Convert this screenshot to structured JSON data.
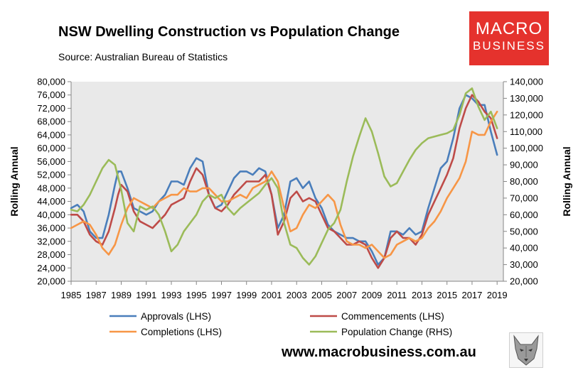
{
  "header": {
    "title": "NSW Dwelling Construction vs Population Change",
    "source": "Source: Australian Bureau of Statistics"
  },
  "logo": {
    "line1": "MACRO",
    "line2": "BUSINESS",
    "color": "#e5322d"
  },
  "footer": {
    "url": "www.macrobusiness.com.au",
    "wolf_icon": "wolf-icon"
  },
  "chart_data": {
    "type": "line",
    "ylabel_left": "Rolling Annual",
    "ylabel_right": "Rolling Annual",
    "ylim_left": [
      20000,
      80000
    ],
    "ylim_right": [
      20000,
      140000
    ],
    "yticks_left": [
      "20,000",
      "24,000",
      "28,000",
      "32,000",
      "36,000",
      "40,000",
      "44,000",
      "48,000",
      "52,000",
      "56,000",
      "60,000",
      "64,000",
      "68,000",
      "72,000",
      "76,000",
      "80,000"
    ],
    "yticks_right": [
      "20,000",
      "30,000",
      "40,000",
      "50,000",
      "60,000",
      "70,000",
      "80,000",
      "90,000",
      "100,000",
      "110,000",
      "120,000",
      "130,000",
      "140,000"
    ],
    "xlim": [
      1985,
      2019.5
    ],
    "xticks": [
      "1985",
      "1987",
      "1989",
      "1991",
      "1993",
      "1995",
      "1997",
      "1999",
      "2001",
      "2003",
      "2005",
      "2007",
      "2009",
      "2011",
      "2013",
      "2015",
      "2017",
      "2019"
    ],
    "plot_background": "#e9e9e9",
    "grid": false,
    "legend_position": "bottom",
    "series": [
      {
        "name": "Approvals (LHS)",
        "axis": "left",
        "color": "#4a7ebb",
        "x": [
          1985,
          1985.5,
          1986,
          1986.5,
          1987,
          1987.5,
          1988,
          1988.5,
          1988.75,
          1989,
          1989.5,
          1990,
          1990.5,
          1991,
          1991.5,
          1992,
          1992.5,
          1993,
          1993.5,
          1994,
          1994.5,
          1995,
          1995.5,
          1996,
          1996.5,
          1997,
          1997.5,
          1998,
          1998.5,
          1999,
          1999.5,
          2000,
          2000.5,
          2001,
          2001.5,
          2002,
          2002.5,
          2003,
          2003.5,
          2004,
          2004.5,
          2005,
          2005.5,
          2006,
          2006.5,
          2007,
          2007.5,
          2008,
          2008.5,
          2009,
          2009.5,
          2010,
          2010.5,
          2011,
          2011.5,
          2012,
          2012.5,
          2013,
          2013.5,
          2014,
          2014.5,
          2015,
          2015.5,
          2016,
          2016.5,
          2017,
          2017.5,
          2018,
          2018.5,
          2019
        ],
        "y": [
          42000,
          43000,
          41000,
          35000,
          33000,
          33000,
          40000,
          49000,
          53000,
          53000,
          48000,
          42000,
          41000,
          40000,
          41000,
          44000,
          46000,
          50000,
          50000,
          49000,
          54000,
          57000,
          56000,
          46000,
          42000,
          43000,
          47000,
          51000,
          53000,
          53000,
          52000,
          54000,
          53000,
          46000,
          36000,
          40000,
          50000,
          51000,
          48000,
          50000,
          45000,
          42000,
          37000,
          35000,
          34000,
          33000,
          33000,
          32000,
          32000,
          29000,
          25000,
          27000,
          35000,
          35000,
          34000,
          36000,
          34000,
          35000,
          42000,
          48000,
          54000,
          56000,
          63000,
          72000,
          76000,
          75000,
          73000,
          73000,
          65000,
          58000
        ]
      },
      {
        "name": "Commencements (LHS)",
        "axis": "left",
        "color": "#be4b48",
        "x": [
          1985,
          1985.5,
          1986,
          1986.5,
          1987,
          1987.5,
          1988,
          1988.5,
          1988.75,
          1989,
          1989.5,
          1990,
          1990.5,
          1991,
          1991.5,
          1992,
          1992.5,
          1993,
          1993.5,
          1994,
          1994.5,
          1995,
          1995.5,
          1996,
          1996.5,
          1997,
          1997.5,
          1998,
          1998.5,
          1999,
          1999.5,
          2000,
          2000.5,
          2001,
          2001.5,
          2002,
          2002.5,
          2003,
          2003.5,
          2004,
          2004.5,
          2005,
          2005.5,
          2006,
          2006.5,
          2007,
          2007.5,
          2008,
          2008.5,
          2009,
          2009.5,
          2010,
          2010.5,
          2011,
          2011.5,
          2012,
          2012.5,
          2013,
          2013.5,
          2014,
          2014.5,
          2015,
          2015.5,
          2016,
          2016.5,
          2017,
          2017.5,
          2018,
          2018.5,
          2019
        ],
        "y": [
          40000,
          40000,
          38000,
          34000,
          32000,
          31000,
          35000,
          42000,
          46000,
          49000,
          47000,
          41000,
          38000,
          37000,
          36000,
          38000,
          40000,
          43000,
          44000,
          45000,
          50000,
          54000,
          52000,
          46000,
          42000,
          41000,
          43000,
          46000,
          48000,
          50000,
          50000,
          50000,
          52000,
          46000,
          34000,
          38000,
          45000,
          47000,
          44000,
          45000,
          44000,
          40000,
          36000,
          35000,
          33000,
          31000,
          31000,
          32000,
          31000,
          27000,
          24000,
          27000,
          33000,
          35000,
          33000,
          33000,
          31000,
          34000,
          40000,
          44000,
          48000,
          52000,
          57000,
          66000,
          72000,
          76000,
          74000,
          71000,
          69000,
          63000
        ]
      },
      {
        "name": "Completions (LHS)",
        "axis": "left",
        "color": "#f79646",
        "x": [
          1985,
          1985.5,
          1986,
          1986.5,
          1987,
          1987.5,
          1988,
          1988.5,
          1989,
          1989.5,
          1990,
          1990.5,
          1991,
          1991.5,
          1992,
          1992.5,
          1993,
          1993.5,
          1994,
          1994.5,
          1995,
          1995.5,
          1996,
          1996.5,
          1997,
          1997.5,
          1998,
          1998.5,
          1999,
          1999.5,
          2000,
          2000.5,
          2001,
          2001.5,
          2002,
          2002.5,
          2003,
          2003.5,
          2004,
          2004.5,
          2005,
          2005.5,
          2006,
          2006.5,
          2007,
          2007.5,
          2008,
          2008.5,
          2009,
          2009.5,
          2010,
          2010.5,
          2011,
          2011.5,
          2012,
          2012.5,
          2013,
          2013.5,
          2014,
          2014.5,
          2015,
          2015.5,
          2016,
          2016.5,
          2017,
          2017.5,
          2018,
          2018.5,
          2019
        ],
        "y": [
          36000,
          37000,
          38000,
          37000,
          34000,
          30000,
          28000,
          31000,
          37000,
          42000,
          45000,
          44000,
          43000,
          42000,
          44000,
          45000,
          46000,
          46000,
          48000,
          47000,
          47000,
          48000,
          48000,
          46000,
          44000,
          44000,
          45000,
          46000,
          45000,
          48000,
          49000,
          50000,
          53000,
          50000,
          42000,
          35000,
          36000,
          40000,
          43000,
          42000,
          44000,
          46000,
          44000,
          37000,
          32000,
          31000,
          31000,
          30000,
          31000,
          29000,
          27000,
          28000,
          31000,
          32000,
          33000,
          32000,
          33000,
          36000,
          38000,
          41000,
          45000,
          48000,
          51000,
          56000,
          65000,
          64000,
          64000,
          68000,
          71000
        ]
      },
      {
        "name": "Population Change (RHS)",
        "axis": "right",
        "color": "#9bbb59",
        "x": [
          1985,
          1985.5,
          1986,
          1986.5,
          1987,
          1987.5,
          1988,
          1988.5,
          1989,
          1989.5,
          1990,
          1990.5,
          1991,
          1991.5,
          1992,
          1992.5,
          1993,
          1993.5,
          1994,
          1994.5,
          1995,
          1995.5,
          1996,
          1996.5,
          1997,
          1997.5,
          1998,
          1998.5,
          1999,
          1999.5,
          2000,
          2000.5,
          2001,
          2001.5,
          2002,
          2002.5,
          2003,
          2003.5,
          2004,
          2004.5,
          2005,
          2005.5,
          2006,
          2006.5,
          2007,
          2007.5,
          2008,
          2008.5,
          2009,
          2009.5,
          2010,
          2010.5,
          2011,
          2011.5,
          2012,
          2012.5,
          2013,
          2013.5,
          2014,
          2014.5,
          2015,
          2015.5,
          2016,
          2016.5,
          2017,
          2017.5,
          2018,
          2018.5,
          2019
        ],
        "y": [
          63000,
          62000,
          66000,
          72000,
          80000,
          88000,
          93000,
          90000,
          75000,
          55000,
          50000,
          65000,
          63000,
          65000,
          60000,
          50000,
          38000,
          42000,
          50000,
          55000,
          60000,
          68000,
          72000,
          70000,
          72000,
          64000,
          60000,
          64000,
          67000,
          70000,
          73000,
          78000,
          82000,
          76000,
          55000,
          42000,
          40000,
          34000,
          30000,
          35000,
          43000,
          51000,
          55000,
          63000,
          80000,
          95000,
          107000,
          118000,
          110000,
          97000,
          83000,
          77000,
          79000,
          86000,
          93000,
          99000,
          103000,
          106000,
          107000,
          108000,
          109000,
          111000,
          120000,
          133000,
          136000,
          125000,
          117000,
          122000,
          112000
        ]
      }
    ]
  }
}
